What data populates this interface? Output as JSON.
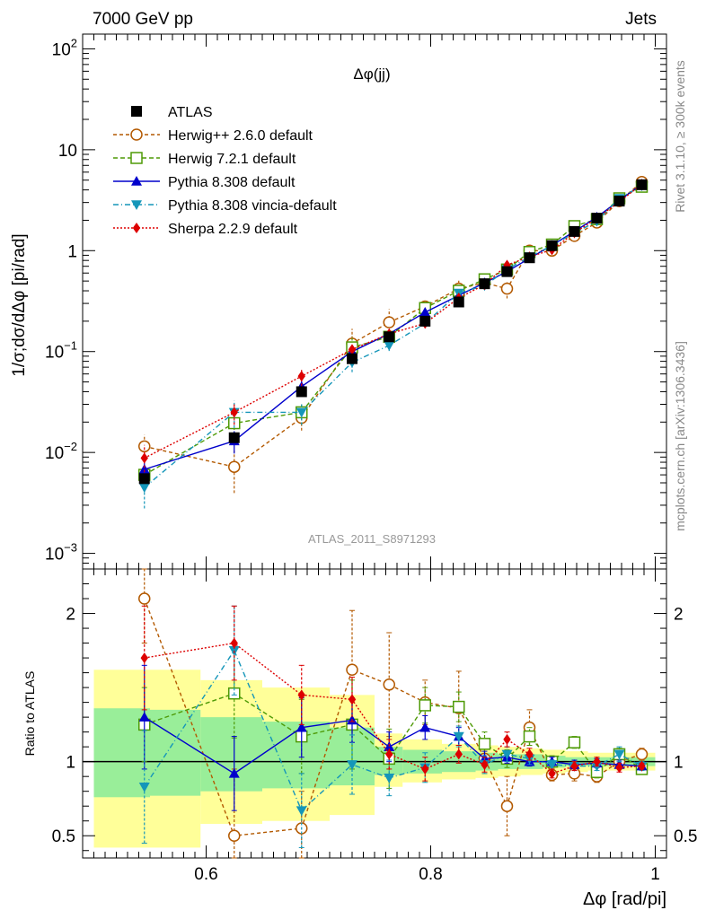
{
  "header": {
    "left": "7000 GeV pp",
    "right": "Jets"
  },
  "side": {
    "rivet": "Rivet 3.1.10, ≥ 300k events",
    "mcplots": "mcplots.cern.ch [arXiv:1306.3436]"
  },
  "chart_data": {
    "type": "line",
    "title": "Δφ(jj)",
    "analysis": "ATLAS_2011_S8971293",
    "xlabel": "Δφ [rad/pi]",
    "xlim": [
      0.49,
      1.01
    ],
    "x_ticks": [
      0.6,
      0.8,
      1
    ],
    "x_tick_labels": [
      "0.6",
      "0.8",
      "1"
    ],
    "main": {
      "ylabel": "1/σ;dσ/dΔφ [pi/rad]",
      "yscale": "log",
      "ylim": [
        0.0007,
        140
      ],
      "y_tick_labels": [
        {
          "value": 0.001,
          "base": "10",
          "exp": "−3"
        },
        {
          "value": 0.01,
          "base": "10",
          "exp": "−2"
        },
        {
          "value": 0.1,
          "base": "10",
          "exp": "−1"
        },
        {
          "value": 1,
          "base": "1",
          "exp": ""
        },
        {
          "value": 10,
          "base": "10",
          "exp": ""
        },
        {
          "value": 100,
          "base": "10",
          "exp": "2"
        }
      ]
    },
    "ratio": {
      "ylabel": "Ratio to ATLAS",
      "ylim": [
        0.35,
        2.3
      ],
      "y_ticks": [
        0.5,
        1,
        2
      ],
      "y_tick_labels": [
        "0.5",
        "1",
        "2"
      ],
      "bands": [
        {
          "x": [
            0.5,
            0.55
          ],
          "yellow": [
            0.42,
            1.62
          ],
          "green": [
            0.76,
            1.36
          ]
        },
        {
          "x": [
            0.55,
            0.595
          ],
          "yellow": [
            0.42,
            1.62
          ],
          "green": [
            0.77,
            1.35
          ]
        },
        {
          "x": [
            0.595,
            0.65
          ],
          "yellow": [
            0.58,
            1.55
          ],
          "green": [
            0.8,
            1.3
          ]
        },
        {
          "x": [
            0.65,
            0.71
          ],
          "yellow": [
            0.6,
            1.5
          ],
          "green": [
            0.82,
            1.27
          ]
        },
        {
          "x": [
            0.71,
            0.75
          ],
          "yellow": [
            0.64,
            1.45
          ],
          "green": [
            0.84,
            1.23
          ]
        },
        {
          "x": [
            0.75,
            0.775
          ],
          "yellow": [
            0.83,
            1.19
          ],
          "green": [
            0.91,
            1.1
          ]
        },
        {
          "x": [
            0.775,
            0.81
          ],
          "yellow": [
            0.86,
            1.15
          ],
          "green": [
            0.92,
            1.08
          ]
        },
        {
          "x": [
            0.81,
            0.84
          ],
          "yellow": [
            0.88,
            1.12
          ],
          "green": [
            0.93,
            1.07
          ]
        },
        {
          "x": [
            0.84,
            0.86
          ],
          "yellow": [
            0.89,
            1.11
          ],
          "green": [
            0.94,
            1.06
          ]
        },
        {
          "x": [
            0.86,
            0.88
          ],
          "yellow": [
            0.9,
            1.1
          ],
          "green": [
            0.95,
            1.05
          ]
        },
        {
          "x": [
            0.88,
            0.9
          ],
          "yellow": [
            0.91,
            1.09
          ],
          "green": [
            0.95,
            1.05
          ]
        },
        {
          "x": [
            0.9,
            0.92
          ],
          "yellow": [
            0.92,
            1.08
          ],
          "green": [
            0.96,
            1.04
          ]
        },
        {
          "x": [
            0.92,
            0.94
          ],
          "yellow": [
            0.93,
            1.07
          ],
          "green": [
            0.97,
            1.03
          ]
        },
        {
          "x": [
            0.94,
            0.96
          ],
          "yellow": [
            0.94,
            1.06
          ],
          "green": [
            0.97,
            1.03
          ]
        },
        {
          "x": [
            0.96,
            0.98
          ],
          "yellow": [
            0.94,
            1.06
          ],
          "green": [
            0.97,
            1.03
          ]
        },
        {
          "x": [
            0.98,
            1.0
          ],
          "yellow": [
            0.94,
            1.06
          ],
          "green": [
            0.97,
            1.03
          ]
        }
      ]
    },
    "x": [
      0.545,
      0.625,
      0.685,
      0.73,
      0.763,
      0.795,
      0.825,
      0.848,
      0.868,
      0.888,
      0.908,
      0.928,
      0.948,
      0.968,
      0.988
    ],
    "atlas": {
      "name": "ATLAS",
      "values": [
        0.0055,
        0.014,
        0.04,
        0.085,
        0.14,
        0.2,
        0.31,
        0.47,
        0.62,
        0.85,
        1.12,
        1.55,
        2.1,
        3.1,
        4.5
      ]
    },
    "series": [
      {
        "name": "Herwig++ 2.6.0 default",
        "color": "#b35900",
        "marker": "circle-open",
        "dash": "4,3",
        "values": [
          0.0115,
          0.0072,
          0.022,
          0.12,
          0.195,
          0.28,
          0.42,
          0.48,
          0.42,
          1.0,
          1.0,
          1.4,
          1.9,
          3.1,
          4.8
        ],
        "ratio": [
          2.1,
          0.5,
          0.55,
          1.62,
          1.52,
          1.4,
          1.36,
          1.02,
          0.7,
          1.23,
          0.91,
          0.92,
          0.9,
          1.0,
          1.05
        ],
        "ratio_err": [
          0.3,
          0.45,
          0.25,
          0.4,
          0.35,
          0.15,
          0.25,
          0.1,
          0.2,
          0.12,
          0.04,
          0.05,
          0.04,
          0.05,
          0.04
        ]
      },
      {
        "name": "Herwig 7.2.1 default",
        "color": "#4e9a06",
        "marker": "square-open",
        "dash": "5,3",
        "values": [
          0.006,
          0.0195,
          0.025,
          0.11,
          0.14,
          0.27,
          0.4,
          0.52,
          0.65,
          0.97,
          1.15,
          1.75,
          2.05,
          3.3,
          4.3
        ],
        "ratio": [
          1.25,
          1.46,
          1.17,
          1.25,
          1.02,
          1.38,
          1.37,
          1.12,
          1.02,
          1.17,
          1.0,
          1.13,
          0.93,
          1.05,
          0.95
        ],
        "ratio_err": [
          0.25,
          0.3,
          0.25,
          0.3,
          0.2,
          0.12,
          0.1,
          0.08,
          0.06,
          0.06,
          0.04,
          0.04,
          0.04,
          0.04,
          0.03
        ]
      },
      {
        "name": "Pythia 8.308 default",
        "color": "#0000cc",
        "marker": "triangle-up",
        "dash": "",
        "values": [
          0.0068,
          0.013,
          0.045,
          0.1,
          0.15,
          0.245,
          0.36,
          0.48,
          0.62,
          0.84,
          1.13,
          1.55,
          2.15,
          3.15,
          4.55
        ],
        "ratio": [
          1.3,
          0.92,
          1.23,
          1.28,
          1.1,
          1.23,
          1.17,
          1.02,
          1.03,
          1.0,
          1.0,
          0.98,
          0.99,
          0.98,
          0.97
        ],
        "ratio_err": [
          0.35,
          0.25,
          0.2,
          0.15,
          0.1,
          0.08,
          0.06,
          0.05,
          0.04,
          0.03,
          0.03,
          0.03,
          0.03,
          0.03,
          0.02
        ]
      },
      {
        "name": "Pythia 8.308 vincia-default",
        "color": "#1596b9",
        "marker": "triangle-down",
        "dash": "6,3,1,3",
        "values": [
          0.0045,
          0.025,
          0.025,
          0.078,
          0.115,
          0.19,
          0.38,
          0.45,
          0.65,
          0.87,
          1.12,
          1.5,
          1.95,
          3.3,
          4.4
        ],
        "ratio": [
          0.83,
          1.75,
          0.67,
          0.98,
          0.89,
          0.96,
          1.17,
          0.98,
          1.05,
          1.02,
          0.98,
          0.97,
          0.97,
          1.05,
          0.97
        ],
        "ratio_err": [
          0.38,
          0.3,
          0.25,
          0.2,
          0.12,
          0.1,
          0.07,
          0.06,
          0.05,
          0.04,
          0.03,
          0.03,
          0.03,
          0.05,
          0.03
        ]
      },
      {
        "name": "Sherpa 2.2.9 default",
        "color": "#dd0000",
        "marker": "diamond",
        "dash": "2,2",
        "values": [
          0.0088,
          0.025,
          0.057,
          0.105,
          0.15,
          0.19,
          0.34,
          0.46,
          0.72,
          0.87,
          1.02,
          1.5,
          2.1,
          3.05,
          4.55
        ],
        "ratio": [
          1.7,
          1.8,
          1.45,
          1.42,
          1.05,
          0.95,
          1.05,
          0.98,
          1.15,
          1.05,
          0.92,
          0.97,
          1.0,
          0.96,
          0.97
        ],
        "ratio_err": [
          0.35,
          0.25,
          0.2,
          0.15,
          0.1,
          0.08,
          0.06,
          0.05,
          0.05,
          0.04,
          0.03,
          0.03,
          0.03,
          0.03,
          0.02
        ]
      }
    ]
  }
}
